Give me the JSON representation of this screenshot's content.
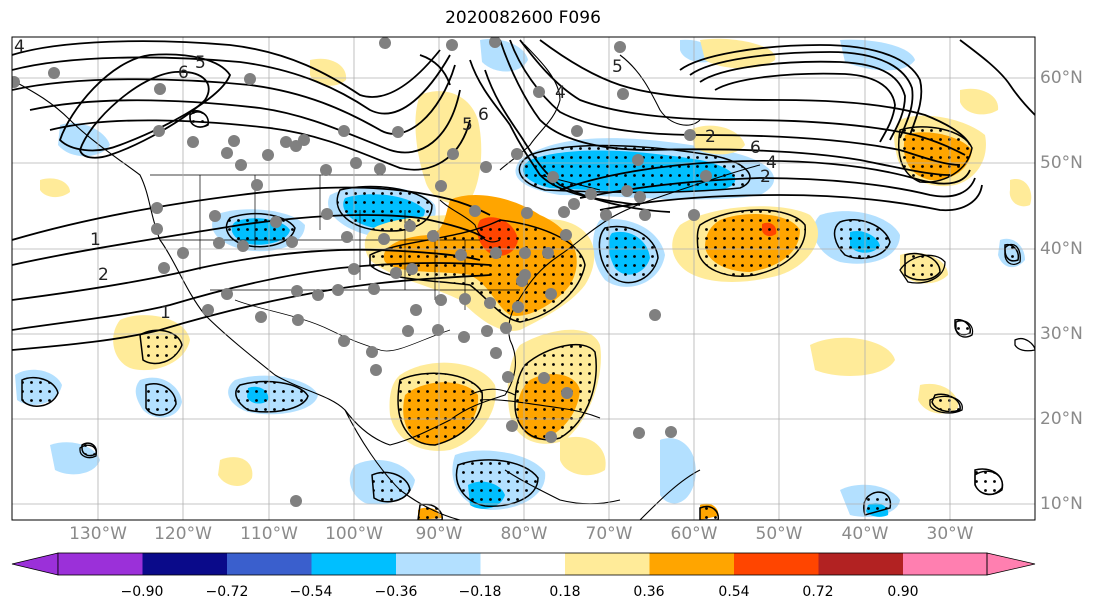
{
  "title": "2020082600 F096",
  "lon_labels": [
    "130°W",
    "120°W",
    "110°W",
    "100°W",
    "90°W",
    "80°W",
    "70°W",
    "60°W",
    "50°W",
    "40°W",
    "30°W"
  ],
  "lat_labels": [
    "60°N",
    "50°N",
    "40°N",
    "30°N",
    "20°N",
    "10°N"
  ],
  "colorbar": {
    "ticks": [
      "−0.90",
      "−0.72",
      "−0.54",
      "−0.36",
      "−0.18",
      "0.18",
      "0.36",
      "0.54",
      "0.72",
      "0.90"
    ],
    "colors": [
      "#9b30d9",
      "#0a0a8a",
      "#3a5fcd",
      "#00bfff",
      "#b3e0ff",
      "#ffffff",
      "#ffeb99",
      "#ffa500",
      "#ff4500",
      "#b22222",
      "#ff7fb0"
    ]
  },
  "contour_labels": [
    "4",
    "6",
    "5",
    "1",
    "2",
    "1",
    "5",
    "6",
    "5",
    "4",
    "2",
    "4",
    "6",
    "2"
  ],
  "colors": {
    "light_blue": "#b3e0ff",
    "blue": "#00bfff",
    "light_yellow": "#ffeb99",
    "orange": "#ffa500",
    "red": "#ff4500",
    "station_dot": "#808080",
    "grid": "#b0b0b0"
  }
}
